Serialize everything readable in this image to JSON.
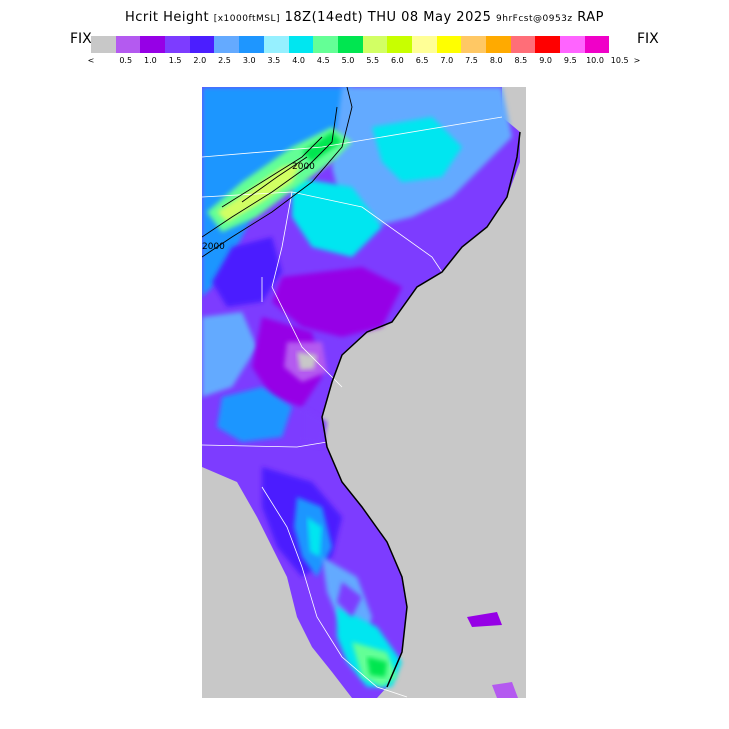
{
  "title": {
    "main_a": "Hcrit Height",
    "units": "[x1000ftMSL]",
    "main_b": "18Z(14edt) THU 08 May 2025",
    "fcst": "9hrFcst@0953z",
    "model": "RAP"
  },
  "fix_left": "FIX",
  "fix_right": "FIX",
  "colorbar": {
    "colors": [
      "#c8c8c8",
      "#b45af0",
      "#9600e6",
      "#7d3cff",
      "#4b1eff",
      "#64aaff",
      "#1e96ff",
      "#96f0ff",
      "#00e6f0",
      "#64ff96",
      "#00e650",
      "#d2ff64",
      "#c8ff00",
      "#ffff96",
      "#ffff00",
      "#ffc864",
      "#ffaa00",
      "#ff6e78",
      "#ff0000",
      "#ff64ff",
      "#f000c8"
    ],
    "labels": [
      "<",
      "0.5",
      "1.0",
      "1.5",
      "2.0",
      "2.5",
      "3.0",
      "3.5",
      "4.0",
      "4.5",
      "5.0",
      "5.5",
      "6.0",
      "6.5",
      "7.0",
      "7.5",
      "8.0",
      "8.5",
      "9.0",
      "9.5",
      "10.0",
      "10.5",
      ">"
    ]
  },
  "map": {
    "contour_labels": [
      "2000",
      "2000"
    ]
  }
}
